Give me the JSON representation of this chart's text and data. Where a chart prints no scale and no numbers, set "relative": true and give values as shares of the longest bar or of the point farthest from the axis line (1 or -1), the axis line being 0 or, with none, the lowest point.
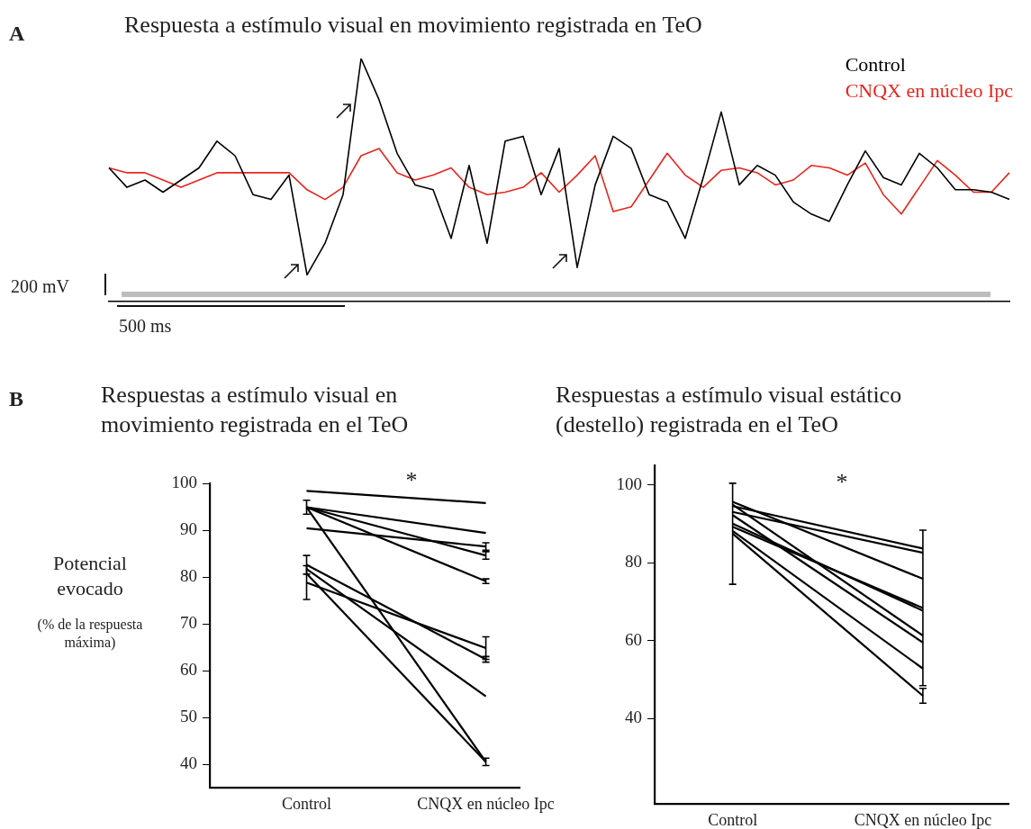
{
  "chart_data": [
    {
      "type": "line",
      "title": "Respuesta a estímulo visual en movimiento registrada en TeO",
      "relative": true,
      "grid": false,
      "marker": "none",
      "legend": "top right",
      "categories": [
        null,
        null,
        null,
        null,
        null,
        null,
        null,
        null,
        null,
        null,
        null,
        null,
        null,
        null,
        null,
        null,
        null,
        null,
        null,
        null,
        null,
        null,
        null,
        null,
        null,
        null,
        null,
        null,
        null,
        null,
        null,
        null,
        null,
        null,
        null,
        null,
        null,
        null,
        null,
        null,
        null,
        null,
        null,
        null,
        null,
        null,
        null,
        null,
        null,
        null,
        null
      ],
      "series": [
        {
          "name": "Control",
          "color": "#000000",
          "values": [
            0.55,
            0.47,
            0.5,
            0.45,
            0.5,
            0.55,
            0.66,
            0.6,
            0.44,
            0.42,
            0.52,
            0.11,
            0.24,
            0.44,
            1.0,
            0.83,
            0.61,
            0.48,
            0.46,
            0.26,
            0.56,
            0.24,
            0.66,
            0.68,
            0.44,
            0.63,
            0.14,
            0.48,
            0.68,
            0.63,
            0.44,
            0.41,
            0.26,
            0.51,
            0.78,
            0.48,
            0.56,
            0.52,
            0.41,
            0.36,
            0.33,
            0.48,
            0.62,
            0.51,
            0.48,
            0.61,
            0.55,
            0.46,
            0.46,
            0.45,
            0.42
          ]
        },
        {
          "name": "CNQX en núcleo Ipc",
          "color": "#e8251c",
          "values": [
            0.55,
            0.53,
            0.53,
            0.5,
            0.47,
            0.5,
            0.53,
            0.53,
            0.53,
            0.53,
            0.53,
            0.46,
            0.42,
            0.47,
            0.6,
            0.63,
            0.53,
            0.5,
            0.52,
            0.55,
            0.47,
            0.44,
            0.45,
            0.47,
            0.53,
            0.45,
            0.52,
            0.6,
            0.37,
            0.39,
            0.5,
            0.61,
            0.52,
            0.47,
            0.54,
            0.55,
            0.53,
            0.48,
            0.5,
            0.56,
            0.55,
            0.52,
            0.57,
            0.44,
            0.36,
            0.47,
            0.58,
            0.52,
            0.45,
            0.45,
            0.53
          ]
        }
      ],
      "annotations": [
        "A",
        "200 mV",
        "500 ms"
      ]
    },
    {
      "type": "line",
      "title": "Respuestas a estímulo visual en\nmovimiento registrada en el TeO",
      "ylabel": "Potencial\nevocado",
      "grid": false,
      "categories": [
        "Control",
        "CNQX en núcleo Ipc"
      ],
      "ylim": [
        35,
        100
      ],
      "yticks": [
        40,
        50,
        60,
        70,
        80,
        90,
        100
      ],
      "series": [
        {
          "color": "#000000",
          "values": [
            98.4,
            95.8
          ]
        },
        {
          "color": "#000000",
          "values": [
            94.9,
            89.4
          ],
          "errors": [
            1.5,
            null
          ]
        },
        {
          "color": "#000000",
          "values": [
            94.9,
            84.6
          ],
          "errors": [
            null,
            0.8
          ]
        },
        {
          "color": "#000000",
          "values": [
            94.9,
            79.1
          ],
          "errors": [
            null,
            0.5
          ]
        },
        {
          "color": "#000000",
          "values": [
            94.9,
            40.5
          ],
          "errors": [
            null,
            0.8
          ]
        },
        {
          "color": "#000000",
          "values": [
            90.4,
            86.5
          ],
          "errors": [
            null,
            0.8
          ]
        },
        {
          "color": "#000000",
          "values": [
            82.6,
            62.4
          ],
          "errors": [
            2.0,
            0.6
          ]
        },
        {
          "color": "#000000",
          "values": [
            78.8,
            64.8
          ],
          "errors": [
            3.6,
            2.4
          ]
        },
        {
          "color": "#000000",
          "values": [
            81.7,
            54.5
          ]
        },
        {
          "color": "#000000",
          "values": [
            80.7,
            40.5
          ]
        }
      ],
      "annotations": [
        "B",
        "*",
        "(% de la respuesta\nmáxima)"
      ]
    },
    {
      "type": "line",
      "title": "Respuestas a estímulo visual estático\n(destello) registrada en el TeO",
      "grid": false,
      "categories": [
        "Control",
        "CNQX en núcleo Ipc"
      ],
      "ylim": [
        18,
        105
      ],
      "yticks": [
        40,
        60,
        80,
        100
      ],
      "series": [
        {
          "color": "#000000",
          "values": [
            94.6,
            83.7
          ]
        },
        {
          "color": "#000000",
          "values": [
            93.1,
            82.6
          ]
        },
        {
          "color": "#000000",
          "values": [
            95.7,
            75.9
          ]
        },
        {
          "color": "#000000",
          "values": [
            89.3,
            68.4
          ],
          "errors": [
            null,
            20
          ]
        },
        {
          "color": "#000000",
          "values": [
            90.1,
            67.7
          ]
        },
        {
          "color": "#000000",
          "values": [
            95.0,
            61.3
          ]
        },
        {
          "color": "#000000",
          "values": [
            92.3,
            59.5
          ]
        },
        {
          "color": "#000000",
          "values": [
            88.2,
            52.8
          ]
        },
        {
          "color": "#000000",
          "values": [
            87.5,
            45.8
          ],
          "errors": [
            13,
            1.9
          ]
        }
      ],
      "annotations": [
        "*"
      ]
    }
  ]
}
